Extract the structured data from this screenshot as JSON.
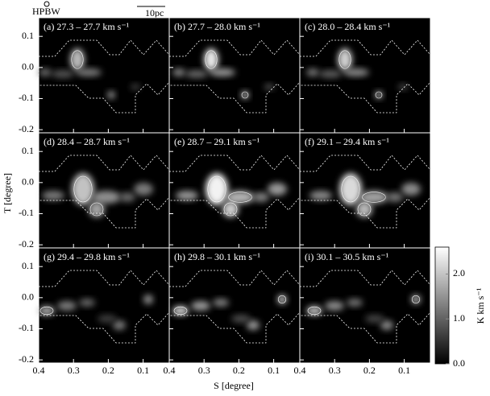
{
  "chart_data": {
    "type": "image-grid",
    "xlabel": "S [degree]",
    "ylabel": "T [degree]",
    "xlim": [
      0.4,
      0.025
    ],
    "xticks": [
      0.4,
      0.3,
      0.2,
      0.1
    ],
    "ylim": [
      -0.21,
      0.16
    ],
    "yticks": [
      0.1,
      {
        "value": 0,
        "label": "0.0"
      },
      -0.1,
      -0.2
    ],
    "panels": [
      {
        "label": "(a) 27.3 – 27.7 km s⁻¹"
      },
      {
        "label": "(b) 27.7 – 28.0 km s⁻¹"
      },
      {
        "label": "(c) 28.0 – 28.4 km s⁻¹"
      },
      {
        "label": "(d) 28.4 – 28.7 km s⁻¹"
      },
      {
        "label": "(e) 28.7 – 29.1 km s⁻¹"
      },
      {
        "label": "(f) 29.1 – 29.4 km s⁻¹"
      },
      {
        "label": "(g) 29.4 – 29.8 km s⁻¹"
      },
      {
        "label": "(h) 29.8 – 30.1 km s⁻¹"
      },
      {
        "label": "(i) 30.1 – 30.5 km s⁻¹"
      }
    ],
    "colorbar": {
      "label": "K km s⁻¹",
      "clim": [
        0,
        2.6
      ],
      "ticks": [
        {
          "value": 0,
          "label": "0.0"
        },
        {
          "value": 1,
          "label": "1.0"
        },
        {
          "value": 2,
          "label": "2.0"
        }
      ]
    },
    "beam_label": "HPBW",
    "scale_label": "10pc"
  }
}
